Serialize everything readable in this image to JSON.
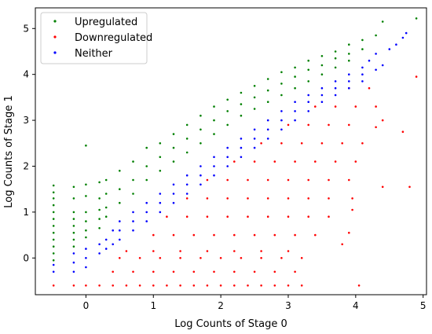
{
  "chart_data": {
    "type": "scatter",
    "title": "",
    "xlabel": "Log Counts of Stage 0",
    "ylabel": "Log Counts of Stage 1",
    "xlim": [
      -0.75,
      5.05
    ],
    "ylim": [
      -0.8,
      5.45
    ],
    "xticks": [
      0,
      1,
      2,
      3,
      4,
      5
    ],
    "yticks": [
      0,
      1,
      2,
      3,
      4,
      5
    ],
    "grid": false,
    "legend_position": "top-left",
    "series": [
      {
        "name": "Upregulated",
        "color": "#008000",
        "points": [
          [
            -0.48,
            1.58
          ],
          [
            -0.48,
            1.43
          ],
          [
            -0.48,
            1.3
          ],
          [
            -0.48,
            1.15
          ],
          [
            -0.48,
            1.0
          ],
          [
            -0.48,
            0.85
          ],
          [
            -0.48,
            0.7
          ],
          [
            -0.48,
            0.55
          ],
          [
            -0.48,
            0.4
          ],
          [
            -0.48,
            0.25
          ],
          [
            -0.48,
            0.1
          ],
          [
            -0.48,
            -0.05
          ],
          [
            -0.18,
            1.55
          ],
          [
            -0.18,
            1.3
          ],
          [
            -0.18,
            1.0
          ],
          [
            -0.18,
            0.85
          ],
          [
            -0.18,
            0.7
          ],
          [
            -0.18,
            0.55
          ],
          [
            -0.18,
            0.4
          ],
          [
            -0.18,
            0.25
          ],
          [
            0.0,
            2.45
          ],
          [
            0.0,
            1.6
          ],
          [
            0.0,
            1.35
          ],
          [
            0.0,
            1.0
          ],
          [
            0.0,
            0.8
          ],
          [
            0.0,
            0.6
          ],
          [
            0.0,
            0.45
          ],
          [
            0.2,
            1.65
          ],
          [
            0.2,
            1.3
          ],
          [
            0.2,
            1.05
          ],
          [
            0.2,
            0.85
          ],
          [
            0.2,
            0.65
          ],
          [
            0.3,
            1.7
          ],
          [
            0.3,
            1.4
          ],
          [
            0.3,
            1.1
          ],
          [
            0.3,
            0.9
          ],
          [
            0.5,
            1.9
          ],
          [
            0.5,
            1.5
          ],
          [
            0.5,
            1.2
          ],
          [
            0.7,
            2.1
          ],
          [
            0.7,
            1.7
          ],
          [
            0.7,
            1.4
          ],
          [
            0.9,
            2.4
          ],
          [
            0.9,
            2.0
          ],
          [
            0.9,
            1.7
          ],
          [
            1.1,
            2.5
          ],
          [
            1.1,
            2.2
          ],
          [
            1.1,
            1.9
          ],
          [
            1.3,
            2.7
          ],
          [
            1.3,
            2.4
          ],
          [
            1.3,
            2.1
          ],
          [
            1.5,
            2.9
          ],
          [
            1.5,
            2.6
          ],
          [
            1.5,
            2.3
          ],
          [
            1.7,
            3.1
          ],
          [
            1.7,
            2.8
          ],
          [
            1.7,
            2.5
          ],
          [
            1.9,
            3.3
          ],
          [
            1.9,
            3.0
          ],
          [
            1.9,
            2.7
          ],
          [
            2.1,
            3.45
          ],
          [
            2.1,
            3.2
          ],
          [
            2.1,
            2.9
          ],
          [
            2.3,
            3.6
          ],
          [
            2.3,
            3.35
          ],
          [
            2.3,
            3.1
          ],
          [
            2.5,
            3.75
          ],
          [
            2.5,
            3.5
          ],
          [
            2.5,
            3.25
          ],
          [
            2.7,
            3.9
          ],
          [
            2.7,
            3.65
          ],
          [
            2.7,
            3.4
          ],
          [
            2.9,
            4.05
          ],
          [
            2.9,
            3.8
          ],
          [
            2.9,
            3.55
          ],
          [
            3.1,
            4.15
          ],
          [
            3.1,
            3.95
          ],
          [
            3.1,
            3.7
          ],
          [
            3.3,
            4.3
          ],
          [
            3.3,
            4.1
          ],
          [
            3.3,
            3.85
          ],
          [
            3.5,
            4.4
          ],
          [
            3.5,
            4.2
          ],
          [
            3.5,
            4.0
          ],
          [
            3.7,
            4.5
          ],
          [
            3.7,
            4.35
          ],
          [
            3.7,
            4.15
          ],
          [
            3.9,
            4.65
          ],
          [
            3.9,
            4.45
          ],
          [
            3.9,
            4.3
          ],
          [
            4.1,
            4.75
          ],
          [
            4.1,
            4.55
          ],
          [
            4.3,
            4.85
          ],
          [
            4.4,
            5.15
          ],
          [
            4.9,
            5.22
          ]
        ]
      },
      {
        "name": "Downregulated",
        "color": "#ff0000",
        "points": [
          [
            -0.48,
            -0.6
          ],
          [
            -0.18,
            -0.6
          ],
          [
            0.0,
            -0.6
          ],
          [
            0.2,
            -0.6
          ],
          [
            0.4,
            -0.6
          ],
          [
            0.6,
            -0.6
          ],
          [
            0.8,
            -0.6
          ],
          [
            1.0,
            -0.6
          ],
          [
            1.2,
            -0.6
          ],
          [
            1.4,
            -0.6
          ],
          [
            1.6,
            -0.6
          ],
          [
            1.8,
            -0.6
          ],
          [
            2.0,
            -0.6
          ],
          [
            2.2,
            -0.6
          ],
          [
            2.4,
            -0.6
          ],
          [
            2.6,
            -0.6
          ],
          [
            2.8,
            -0.6
          ],
          [
            3.0,
            -0.6
          ],
          [
            3.2,
            -0.6
          ],
          [
            0.4,
            -0.3
          ],
          [
            0.7,
            -0.3
          ],
          [
            1.0,
            -0.3
          ],
          [
            1.3,
            -0.3
          ],
          [
            1.6,
            -0.3
          ],
          [
            1.9,
            -0.3
          ],
          [
            2.2,
            -0.3
          ],
          [
            2.5,
            -0.3
          ],
          [
            2.8,
            -0.3
          ],
          [
            3.1,
            -0.3
          ],
          [
            0.5,
            0.0
          ],
          [
            0.8,
            0.0
          ],
          [
            1.1,
            0.0
          ],
          [
            1.4,
            0.0
          ],
          [
            1.7,
            0.0
          ],
          [
            2.0,
            0.0
          ],
          [
            2.3,
            0.0
          ],
          [
            2.6,
            0.0
          ],
          [
            2.9,
            0.0
          ],
          [
            3.2,
            0.0
          ],
          [
            0.6,
            0.15
          ],
          [
            1.0,
            0.15
          ],
          [
            1.4,
            0.15
          ],
          [
            1.8,
            0.15
          ],
          [
            2.2,
            0.15
          ],
          [
            2.6,
            0.15
          ],
          [
            3.0,
            0.15
          ],
          [
            1.0,
            0.5
          ],
          [
            1.3,
            0.5
          ],
          [
            1.6,
            0.5
          ],
          [
            1.9,
            0.5
          ],
          [
            2.2,
            0.5
          ],
          [
            2.5,
            0.5
          ],
          [
            2.8,
            0.5
          ],
          [
            3.1,
            0.5
          ],
          [
            3.4,
            0.5
          ],
          [
            1.2,
            0.9
          ],
          [
            1.5,
            0.9
          ],
          [
            1.8,
            0.9
          ],
          [
            2.1,
            0.9
          ],
          [
            2.4,
            0.9
          ],
          [
            2.7,
            0.9
          ],
          [
            3.0,
            0.9
          ],
          [
            3.3,
            0.9
          ],
          [
            3.6,
            0.9
          ],
          [
            1.5,
            1.3
          ],
          [
            1.8,
            1.3
          ],
          [
            2.1,
            1.3
          ],
          [
            2.4,
            1.3
          ],
          [
            2.7,
            1.3
          ],
          [
            3.0,
            1.3
          ],
          [
            3.3,
            1.3
          ],
          [
            3.6,
            1.3
          ],
          [
            1.8,
            1.7
          ],
          [
            2.1,
            1.7
          ],
          [
            2.4,
            1.7
          ],
          [
            2.7,
            1.7
          ],
          [
            3.0,
            1.7
          ],
          [
            3.3,
            1.7
          ],
          [
            3.6,
            1.7
          ],
          [
            3.9,
            1.7
          ],
          [
            2.2,
            2.1
          ],
          [
            2.5,
            2.1
          ],
          [
            2.8,
            2.1
          ],
          [
            3.1,
            2.1
          ],
          [
            3.4,
            2.1
          ],
          [
            3.7,
            2.1
          ],
          [
            4.0,
            2.1
          ],
          [
            2.6,
            2.5
          ],
          [
            2.9,
            2.5
          ],
          [
            3.2,
            2.5
          ],
          [
            3.5,
            2.5
          ],
          [
            3.8,
            2.5
          ],
          [
            4.1,
            2.5
          ],
          [
            3.0,
            2.9
          ],
          [
            3.3,
            2.9
          ],
          [
            3.6,
            2.9
          ],
          [
            3.9,
            2.9
          ],
          [
            3.4,
            3.3
          ],
          [
            3.7,
            3.3
          ],
          [
            4.0,
            3.3
          ],
          [
            4.3,
            3.3
          ],
          [
            3.9,
            3.7
          ],
          [
            4.2,
            3.7
          ],
          [
            3.95,
            1.3
          ],
          [
            3.95,
            1.05
          ],
          [
            3.8,
            0.3
          ],
          [
            3.9,
            0.55
          ],
          [
            4.05,
            -0.6
          ],
          [
            4.4,
            1.55
          ],
          [
            4.3,
            2.85
          ],
          [
            4.4,
            3.0
          ],
          [
            4.7,
            2.75
          ],
          [
            4.8,
            1.55
          ],
          [
            4.9,
            3.95
          ]
        ]
      },
      {
        "name": "Neither",
        "color": "#0000ff",
        "points": [
          [
            -0.48,
            -0.3
          ],
          [
            -0.48,
            -0.15
          ],
          [
            -0.18,
            0.1
          ],
          [
            -0.18,
            -0.1
          ],
          [
            -0.18,
            -0.3
          ],
          [
            0.0,
            0.2
          ],
          [
            0.0,
            0.0
          ],
          [
            0.0,
            -0.2
          ],
          [
            0.2,
            0.3
          ],
          [
            0.2,
            0.1
          ],
          [
            0.3,
            0.4
          ],
          [
            0.3,
            0.2
          ],
          [
            0.4,
            0.6
          ],
          [
            0.4,
            0.3
          ],
          [
            0.5,
            0.8
          ],
          [
            0.5,
            0.6
          ],
          [
            0.5,
            0.4
          ],
          [
            0.7,
            1.0
          ],
          [
            0.7,
            0.8
          ],
          [
            0.7,
            0.6
          ],
          [
            0.9,
            1.2
          ],
          [
            0.9,
            1.0
          ],
          [
            0.9,
            0.8
          ],
          [
            1.1,
            1.4
          ],
          [
            1.1,
            1.2
          ],
          [
            1.1,
            1.0
          ],
          [
            1.3,
            1.6
          ],
          [
            1.3,
            1.4
          ],
          [
            1.3,
            1.2
          ],
          [
            1.5,
            1.8
          ],
          [
            1.5,
            1.6
          ],
          [
            1.5,
            1.4
          ],
          [
            1.7,
            2.0
          ],
          [
            1.7,
            1.8
          ],
          [
            1.7,
            1.6
          ],
          [
            1.9,
            2.2
          ],
          [
            1.9,
            2.0
          ],
          [
            1.9,
            1.8
          ],
          [
            2.1,
            2.4
          ],
          [
            2.1,
            2.2
          ],
          [
            2.1,
            2.0
          ],
          [
            2.3,
            2.6
          ],
          [
            2.3,
            2.4
          ],
          [
            2.3,
            2.2
          ],
          [
            2.5,
            2.8
          ],
          [
            2.5,
            2.6
          ],
          [
            2.5,
            2.4
          ],
          [
            2.7,
            3.0
          ],
          [
            2.7,
            2.8
          ],
          [
            2.7,
            2.6
          ],
          [
            2.9,
            3.2
          ],
          [
            2.9,
            3.0
          ],
          [
            2.9,
            2.8
          ],
          [
            3.1,
            3.4
          ],
          [
            3.1,
            3.2
          ],
          [
            3.1,
            3.0
          ],
          [
            3.3,
            3.55
          ],
          [
            3.3,
            3.4
          ],
          [
            3.3,
            3.2
          ],
          [
            3.5,
            3.7
          ],
          [
            3.5,
            3.55
          ],
          [
            3.5,
            3.4
          ],
          [
            3.7,
            3.85
          ],
          [
            3.7,
            3.7
          ],
          [
            3.7,
            3.55
          ],
          [
            3.9,
            4.0
          ],
          [
            3.9,
            3.85
          ],
          [
            3.9,
            3.7
          ],
          [
            4.1,
            4.15
          ],
          [
            4.1,
            4.0
          ],
          [
            4.1,
            3.85
          ],
          [
            4.2,
            4.3
          ],
          [
            4.3,
            4.45
          ],
          [
            4.3,
            4.1
          ],
          [
            4.4,
            4.2
          ],
          [
            4.5,
            4.55
          ],
          [
            4.6,
            4.65
          ],
          [
            4.7,
            4.8
          ],
          [
            4.75,
            4.9
          ]
        ]
      }
    ]
  }
}
